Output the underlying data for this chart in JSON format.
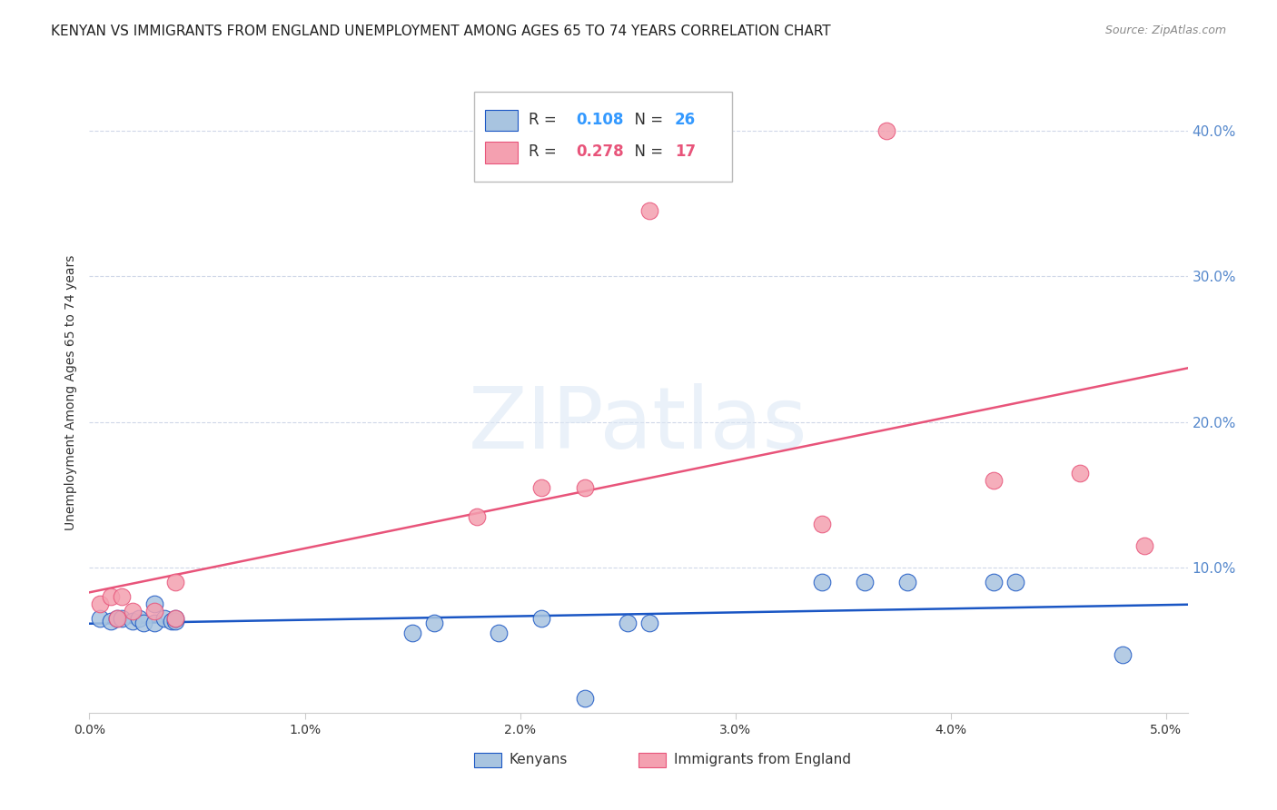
{
  "title": "KENYAN VS IMMIGRANTS FROM ENGLAND UNEMPLOYMENT AMONG AGES 65 TO 74 YEARS CORRELATION CHART",
  "source": "Source: ZipAtlas.com",
  "ylabel": "Unemployment Among Ages 65 to 74 years",
  "watermark": "ZIPatlas",
  "legend_kenyan": "Kenyans",
  "legend_immigrant": "Immigrants from England",
  "R_kenyan": 0.108,
  "N_kenyan": 26,
  "R_immigrant": 0.278,
  "N_immigrant": 17,
  "kenyan_color": "#a8c4e0",
  "kenyan_line_color": "#1a56c4",
  "immigrant_color": "#f4a0b0",
  "immigrant_line_color": "#e8547a",
  "kenyan_x": [
    0.0005,
    0.001,
    0.0013,
    0.0015,
    0.002,
    0.0023,
    0.0025,
    0.003,
    0.003,
    0.0035,
    0.0038,
    0.004,
    0.004,
    0.015,
    0.016,
    0.019,
    0.021,
    0.023,
    0.025,
    0.026,
    0.034,
    0.036,
    0.038,
    0.042,
    0.043,
    0.048
  ],
  "kenyan_y": [
    0.065,
    0.063,
    0.065,
    0.065,
    0.063,
    0.065,
    0.062,
    0.062,
    0.075,
    0.065,
    0.063,
    0.063,
    0.065,
    0.055,
    0.062,
    0.055,
    0.065,
    0.01,
    0.062,
    0.062,
    0.09,
    0.09,
    0.09,
    0.09,
    0.09,
    0.04
  ],
  "immigrant_x": [
    0.0005,
    0.001,
    0.0013,
    0.0015,
    0.002,
    0.003,
    0.004,
    0.004,
    0.018,
    0.021,
    0.023,
    0.026,
    0.034,
    0.037,
    0.042,
    0.046,
    0.049
  ],
  "immigrant_y": [
    0.075,
    0.08,
    0.065,
    0.08,
    0.07,
    0.07,
    0.065,
    0.09,
    0.135,
    0.155,
    0.155,
    0.345,
    0.13,
    0.4,
    0.16,
    0.165,
    0.115
  ],
  "xlim": [
    0.0,
    0.051
  ],
  "ylim": [
    0.0,
    0.44
  ],
  "background_color": "#ffffff",
  "grid_color": "#d0d8e8",
  "title_fontsize": 11,
  "source_fontsize": 9
}
